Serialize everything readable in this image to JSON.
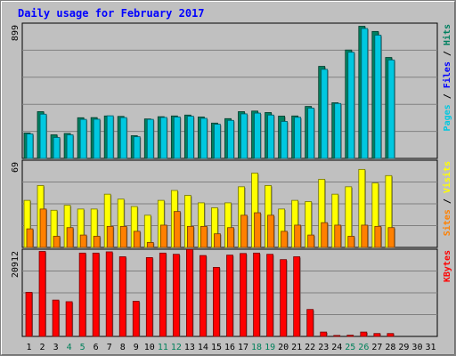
{
  "chart_data": {
    "type": "bar",
    "title": "Daily usage for February 2017",
    "categories": [
      "1",
      "2",
      "3",
      "4",
      "5",
      "6",
      "7",
      "8",
      "9",
      "10",
      "11",
      "12",
      "13",
      "14",
      "15",
      "16",
      "17",
      "18",
      "19",
      "20",
      "21",
      "22",
      "23",
      "24",
      "25",
      "26",
      "27",
      "28",
      "29",
      "30",
      "31"
    ],
    "weekend_days": [
      4,
      5,
      11,
      12,
      18,
      19,
      25,
      26
    ],
    "panels": [
      {
        "name": "pages-files-hits",
        "ymax_label": "899",
        "ymax": 899,
        "right_label": [
          "Pages",
          " / ",
          "Files",
          " / ",
          "Hits"
        ],
        "right_label_colors": [
          "#00c8e0",
          "#000000",
          "#0000ff",
          "#000000",
          "#008060"
        ],
        "grid_lines": 4,
        "series": [
          {
            "name": "Hits",
            "color": "#008060",
            "values": [
              171,
              315,
              159,
              168,
              274,
              275,
              286,
              283,
              153,
              266,
              281,
              286,
              292,
              279,
              238,
              268,
              315,
              319,
              309,
              285,
              286,
              350,
              620,
              375,
              730,
              890,
              855,
              680,
              0,
              0,
              0
            ]
          },
          {
            "name": "Files",
            "color": "#00c8e0",
            "values": [
              165,
              298,
              141,
              159,
              263,
              264,
              287,
              275,
              146,
              263,
              276,
              279,
              284,
              270,
              230,
              256,
              300,
              305,
              292,
              249,
              277,
              339,
              600,
              370,
              715,
              875,
              830,
              663,
              0,
              0,
              0
            ]
          }
        ]
      },
      {
        "name": "visits-sites",
        "ymax_label": "69",
        "ymax": 69,
        "right_label": [
          "Sites",
          " / ",
          "Visits"
        ],
        "right_label_colors": [
          "#ff8000",
          "#000000",
          "#ffff00"
        ],
        "grid_lines": 3,
        "series": [
          {
            "name": "Visits",
            "color": "#ffff00",
            "values": [
              38,
              50,
              30,
              34,
              31,
              31,
              43,
              39,
              33,
              26,
              38,
              46,
              42,
              36,
              32,
              36,
              49,
              60,
              50,
              31,
              38,
              37,
              55,
              43,
              49,
              63,
              52,
              58,
              0,
              0,
              0
            ]
          },
          {
            "name": "Sites",
            "color": "#ff8000",
            "values": [
              15,
              31,
              9,
              16,
              10,
              9,
              17,
              17,
              13,
              4,
              18,
              29,
              17,
              17,
              11,
              16,
              26,
              28,
              26,
              13,
              18,
              10,
              20,
              18,
              9,
              18,
              17,
              16,
              0,
              0,
              0
            ]
          }
        ]
      },
      {
        "name": "kbytes",
        "ymax_label": "20912",
        "ymax": 20912,
        "right_label": [
          "KBytes"
        ],
        "right_label_colors": [
          "#ff0000"
        ],
        "grid_lines": 3,
        "series": [
          {
            "name": "KBytes",
            "color": "#ff0000",
            "values": [
              10800,
              20800,
              8900,
              8500,
              20400,
              20400,
              20700,
              19500,
              8600,
              19300,
              20400,
              20100,
              21300,
              19800,
              16900,
              19900,
              20300,
              20400,
              20100,
              18800,
              19500,
              6600,
              1070,
              240,
              300,
              1070,
              710,
              710,
              0,
              0,
              0
            ]
          }
        ]
      }
    ]
  }
}
